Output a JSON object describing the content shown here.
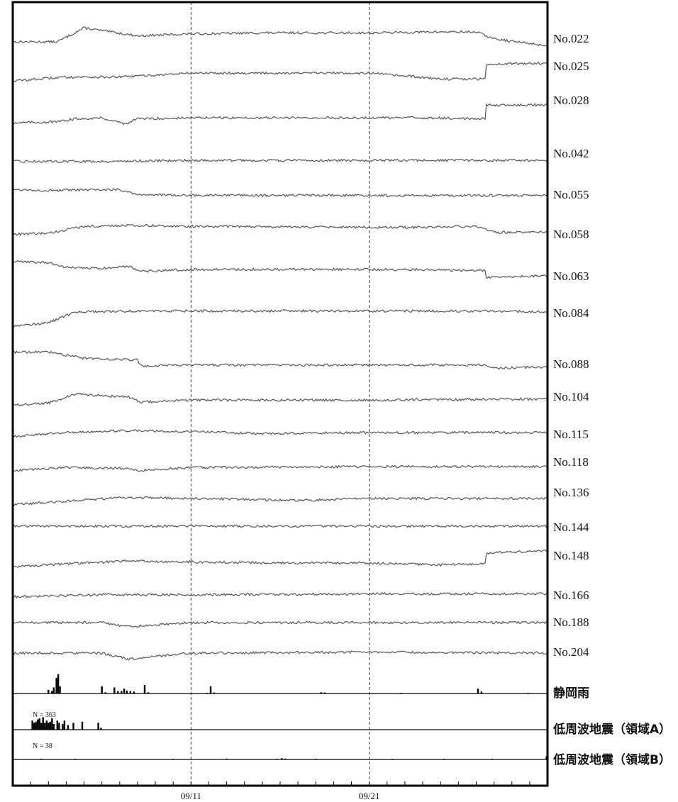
{
  "chart_data": {
    "type": "line",
    "title": "",
    "x_range_days": [
      0,
      30
    ],
    "x_tick_labels": [
      {
        "day": 10,
        "label": "09/11"
      },
      {
        "day": 20,
        "label": "09/21"
      }
    ],
    "grid": "dashed vertical lines at 09/11 and 09/21",
    "series": [
      {
        "name": "No.022",
        "anchors": [
          [
            0,
            0.25
          ],
          [
            2.5,
            0.25
          ],
          [
            4,
            0.95
          ],
          [
            7,
            0.55
          ],
          [
            10,
            0.65
          ],
          [
            14,
            0.7
          ],
          [
            20,
            0.7
          ],
          [
            24,
            0.75
          ],
          [
            26,
            0.75
          ],
          [
            27,
            0.4
          ],
          [
            30,
            0.05
          ]
        ],
        "steps": []
      },
      {
        "name": "No.025",
        "anchors": [
          [
            0,
            0.1
          ],
          [
            3,
            0.3
          ],
          [
            6,
            0.3
          ],
          [
            10,
            0.5
          ],
          [
            17,
            0.5
          ],
          [
            20,
            0.5
          ],
          [
            24,
            0.2
          ],
          [
            26.5,
            0.2
          ]
        ],
        "steps": [
          {
            "day": 26.5,
            "after": [
              [
                26.6,
                0.95
              ],
              [
                30,
                1.0
              ]
            ]
          }
        ]
      },
      {
        "name": "No.028",
        "anchors": [
          [
            0,
            0.1
          ],
          [
            2.5,
            0.15
          ],
          [
            3.5,
            0.3
          ],
          [
            5,
            0.35
          ],
          [
            6.3,
            0.05
          ],
          [
            7,
            0.3
          ],
          [
            10,
            0.35
          ],
          [
            20,
            0.35
          ],
          [
            23,
            0.35
          ],
          [
            26.5,
            0.3
          ]
        ],
        "steps": [
          {
            "day": 26.5,
            "after": [
              [
                26.6,
                1.0
              ],
              [
                30,
                1.0
              ]
            ]
          }
        ]
      },
      {
        "name": "No.042",
        "anchors": [
          [
            0,
            0.3
          ],
          [
            5,
            0.3
          ],
          [
            10,
            0.35
          ],
          [
            20,
            0.35
          ],
          [
            30,
            0.35
          ]
        ],
        "steps": []
      },
      {
        "name": "No.055",
        "anchors": [
          [
            0,
            0.6
          ],
          [
            2,
            0.55
          ],
          [
            6,
            0.6
          ],
          [
            7,
            0.35
          ],
          [
            10,
            0.3
          ],
          [
            20,
            0.3
          ],
          [
            30,
            0.3
          ]
        ],
        "steps": []
      },
      {
        "name": "No.058",
        "anchors": [
          [
            0,
            0.2
          ],
          [
            2,
            0.25
          ],
          [
            4,
            0.6
          ],
          [
            7,
            0.65
          ],
          [
            10,
            0.6
          ],
          [
            20,
            0.55
          ],
          [
            23,
            0.55
          ],
          [
            26,
            0.6
          ],
          [
            27,
            0.3
          ],
          [
            30,
            0.3
          ]
        ],
        "steps": []
      },
      {
        "name": "No.063",
        "anchors": [
          [
            0,
            0.9
          ],
          [
            2,
            0.85
          ],
          [
            3,
            0.6
          ],
          [
            5,
            0.55
          ],
          [
            6.5,
            0.65
          ],
          [
            7.2,
            0.4
          ],
          [
            10,
            0.5
          ],
          [
            20,
            0.5
          ],
          [
            26.5,
            0.45
          ]
        ],
        "steps": [
          {
            "day": 26.5,
            "after": [
              [
                26.6,
                0.1
              ],
              [
                30,
                0.2
              ]
            ]
          }
        ]
      },
      {
        "name": "No.084",
        "anchors": [
          [
            0,
            0.05
          ],
          [
            2,
            0.2
          ],
          [
            3.5,
            0.75
          ],
          [
            7,
            0.8
          ],
          [
            10,
            0.8
          ],
          [
            20,
            0.8
          ],
          [
            27,
            0.8
          ],
          [
            30,
            0.75
          ]
        ],
        "steps": []
      },
      {
        "name": "No.088",
        "anchors": [
          [
            0,
            0.8
          ],
          [
            2,
            0.8
          ],
          [
            4,
            0.5
          ],
          [
            7,
            0.4
          ],
          [
            7.2,
            0.1
          ],
          [
            10,
            0.15
          ],
          [
            20,
            0.15
          ],
          [
            26.5,
            0.15
          ],
          [
            27,
            0.0
          ],
          [
            30,
            0.05
          ]
        ],
        "steps": []
      },
      {
        "name": "No.104",
        "anchors": [
          [
            0,
            0.1
          ],
          [
            2,
            0.2
          ],
          [
            3.5,
            0.65
          ],
          [
            6.5,
            0.5
          ],
          [
            7.2,
            0.25
          ],
          [
            10,
            0.35
          ],
          [
            20,
            0.35
          ],
          [
            27,
            0.4
          ],
          [
            30,
            0.4
          ]
        ],
        "steps": []
      },
      {
        "name": "No.115",
        "anchors": [
          [
            0,
            0.3
          ],
          [
            3,
            0.5
          ],
          [
            6,
            0.6
          ],
          [
            10,
            0.55
          ],
          [
            14,
            0.45
          ],
          [
            20,
            0.5
          ],
          [
            30,
            0.5
          ]
        ],
        "steps": []
      },
      {
        "name": "No.118",
        "anchors": [
          [
            0,
            0.3
          ],
          [
            3,
            0.45
          ],
          [
            6.5,
            0.4
          ],
          [
            7,
            0.3
          ],
          [
            10,
            0.45
          ],
          [
            20,
            0.5
          ],
          [
            30,
            0.5
          ]
        ],
        "steps": []
      },
      {
        "name": "No.136",
        "anchors": [
          [
            0,
            0.2
          ],
          [
            2,
            0.3
          ],
          [
            6,
            0.55
          ],
          [
            10,
            0.5
          ],
          [
            16,
            0.4
          ],
          [
            20,
            0.5
          ],
          [
            30,
            0.5
          ]
        ],
        "steps": []
      },
      {
        "name": "No.144",
        "anchors": [
          [
            0,
            0.5
          ],
          [
            10,
            0.5
          ],
          [
            20,
            0.5
          ],
          [
            30,
            0.5
          ]
        ],
        "steps": []
      },
      {
        "name": "No.148",
        "anchors": [
          [
            0,
            0.2
          ],
          [
            3,
            0.35
          ],
          [
            6.5,
            0.5
          ],
          [
            10,
            0.45
          ],
          [
            15,
            0.4
          ],
          [
            20,
            0.4
          ],
          [
            24,
            0.3
          ],
          [
            26.5,
            0.35
          ]
        ],
        "steps": [
          {
            "day": 26.5,
            "after": [
              [
                26.6,
                0.9
              ],
              [
                30,
                1.0
              ]
            ]
          }
        ]
      },
      {
        "name": "No.166",
        "anchors": [
          [
            0,
            0.3
          ],
          [
            5,
            0.4
          ],
          [
            10,
            0.4
          ],
          [
            20,
            0.45
          ],
          [
            30,
            0.45
          ]
        ],
        "steps": []
      },
      {
        "name": "No.188",
        "anchors": [
          [
            0,
            0.5
          ],
          [
            5,
            0.5
          ],
          [
            6.5,
            0.3
          ],
          [
            10,
            0.5
          ],
          [
            20,
            0.5
          ],
          [
            30,
            0.5
          ]
        ],
        "steps": []
      },
      {
        "name": "No.204",
        "anchors": [
          [
            0,
            0.5
          ],
          [
            5,
            0.5
          ],
          [
            6.5,
            0.2
          ],
          [
            10,
            0.5
          ],
          [
            20,
            0.55
          ],
          [
            30,
            0.5
          ]
        ],
        "steps": []
      }
    ],
    "panels": [
      {
        "name": "静岡雨",
        "count_label": "",
        "bars": [
          [
            2.0,
            0.15
          ],
          [
            2.2,
            0.1
          ],
          [
            2.3,
            0.25
          ],
          [
            2.45,
            0.65
          ],
          [
            2.55,
            0.8
          ],
          [
            2.65,
            0.3
          ],
          [
            5.0,
            0.3
          ],
          [
            5.2,
            0.05
          ],
          [
            5.7,
            0.25
          ],
          [
            5.9,
            0.1
          ],
          [
            6.1,
            0.1
          ],
          [
            6.25,
            0.2
          ],
          [
            6.4,
            0.12
          ],
          [
            6.6,
            0.1
          ],
          [
            6.8,
            0.08
          ],
          [
            7.4,
            0.35
          ],
          [
            7.6,
            0.05
          ],
          [
            10.9,
            0.02
          ],
          [
            11.1,
            0.3
          ],
          [
            11.3,
            0.04
          ],
          [
            17.3,
            0.05
          ],
          [
            17.5,
            0.04
          ],
          [
            21.8,
            0.03
          ],
          [
            26.1,
            0.2
          ],
          [
            26.3,
            0.08
          ],
          [
            28.9,
            0.02
          ]
        ]
      },
      {
        "name": "低周波地震（領域A）",
        "count_label": "N =  363",
        "bars": [
          [
            1.1,
            0.4
          ],
          [
            1.2,
            0.3
          ],
          [
            1.3,
            0.35
          ],
          [
            1.4,
            0.45
          ],
          [
            1.5,
            0.5
          ],
          [
            1.6,
            0.3
          ],
          [
            1.7,
            0.55
          ],
          [
            1.8,
            0.3
          ],
          [
            1.9,
            0.4
          ],
          [
            2.0,
            0.3
          ],
          [
            2.1,
            0.35
          ],
          [
            2.2,
            0.5
          ],
          [
            2.3,
            0.25
          ],
          [
            2.5,
            0.4
          ],
          [
            2.6,
            0.3
          ],
          [
            2.8,
            0.25
          ],
          [
            2.9,
            0.4
          ],
          [
            3.1,
            0.2
          ],
          [
            3.4,
            0.3
          ],
          [
            3.9,
            0.35
          ],
          [
            4.8,
            0.3
          ],
          [
            4.95,
            0.08
          ]
        ]
      },
      {
        "name": "低周波地震（領域B）",
        "count_label": "N =  38",
        "bars": [
          [
            1.6,
            0.03
          ],
          [
            3.5,
            0.03
          ],
          [
            9.0,
            0.03
          ],
          [
            12.0,
            0.04
          ],
          [
            14.8,
            0.03
          ],
          [
            15.1,
            0.06
          ],
          [
            15.3,
            0.04
          ],
          [
            17.0,
            0.02
          ],
          [
            21.3,
            0.03
          ],
          [
            24.2,
            0.02
          ],
          [
            26.9,
            0.03
          ],
          [
            29.95,
            0.15
          ]
        ]
      }
    ]
  }
}
